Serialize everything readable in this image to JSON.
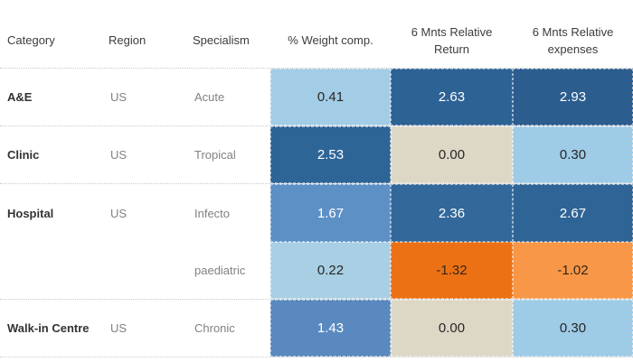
{
  "table": {
    "headers": [
      "Category",
      "Region",
      "Specialism",
      "% Weight comp.",
      "6 Mnts Relative Return",
      "6 Mnts Relative expenses"
    ]
  },
  "rows": [
    {
      "category": "A&E",
      "region": "US",
      "specialism": "Acute",
      "weight": {
        "label": "0.41",
        "bg": "#a3cde6",
        "fg": "#262626"
      },
      "ret": {
        "label": "2.63",
        "bg": "#2d6295",
        "fg": "#ffffff"
      },
      "expenses": {
        "label": "2.93",
        "bg": "#2b5d8f",
        "fg": "#ffffff"
      }
    },
    {
      "category": "Clinic",
      "region": "US",
      "specialism": "Tropical",
      "weight": {
        "label": "2.53",
        "bg": "#2e6597",
        "fg": "#ffffff"
      },
      "ret": {
        "label": "0.00",
        "bg": "#ddd8c6",
        "fg": "#262626"
      },
      "expenses": {
        "label": "0.30",
        "bg": "#9ecbe6",
        "fg": "#262626"
      }
    },
    {
      "category": "Hospital",
      "region": "US",
      "specialism": "Infecto",
      "weight": {
        "label": "1.67",
        "bg": "#5d90c5",
        "fg": "#ffffff"
      },
      "ret": {
        "label": "2.36",
        "bg": "#33689a",
        "fg": "#ffffff"
      },
      "expenses": {
        "label": "2.67",
        "bg": "#2f6496",
        "fg": "#ffffff"
      }
    },
    {
      "category": "",
      "region": "",
      "specialism": "paediatric",
      "weight": {
        "label": "0.22",
        "bg": "#a9cfe5",
        "fg": "#262626"
      },
      "ret": {
        "label": "-1.32",
        "bg": "#ec7114",
        "fg": "#33261a"
      },
      "expenses": {
        "label": "-1.02",
        "bg": "#f79747",
        "fg": "#33261a"
      }
    },
    {
      "category": "Walk-in Centre",
      "region": "US",
      "specialism": "Chronic",
      "weight": {
        "label": "1.43",
        "bg": "#5989bf",
        "fg": "#ffffff"
      },
      "ret": {
        "label": "0.00",
        "bg": "#ddd8c6",
        "fg": "#262626"
      },
      "expenses": {
        "label": "0.30",
        "bg": "#9ecbe6",
        "fg": "#262626"
      }
    }
  ],
  "colors": {
    "positive_high": "#2b5d8f",
    "positive_mid": "#5989bf",
    "positive_low": "#a3cde6",
    "zero": "#ddd8c6",
    "negative_high": "#ec7114",
    "negative_low": "#f79747",
    "grid_dotted": "#c9c9c9"
  },
  "chart_data": {
    "type": "table",
    "title": "",
    "columns": [
      "Category",
      "Region",
      "Specialism",
      "% Weight comp.",
      "6 Mnts Relative Return",
      "6 Mnts Relative expenses"
    ],
    "rows": [
      [
        "A&E",
        "US",
        "Acute",
        0.41,
        2.63,
        2.93
      ],
      [
        "Clinic",
        "US",
        "Tropical",
        2.53,
        0.0,
        0.3
      ],
      [
        "Hospital",
        "US",
        "Infecto",
        1.67,
        2.36,
        2.67
      ],
      [
        "",
        "",
        "paediatric",
        0.22,
        -1.32,
        -1.02
      ],
      [
        "Walk-in Centre",
        "US",
        "Chronic",
        1.43,
        0.0,
        0.3
      ]
    ],
    "layout": {
      "style": "highlight-table",
      "color_encoding": "diverging blue-orange: dark blue = high positive, light blue = low positive, beige = zero, orange = negative",
      "grid": "dotted light-gray row separators; Hospital category spans Infecto and paediatric rows"
    }
  }
}
